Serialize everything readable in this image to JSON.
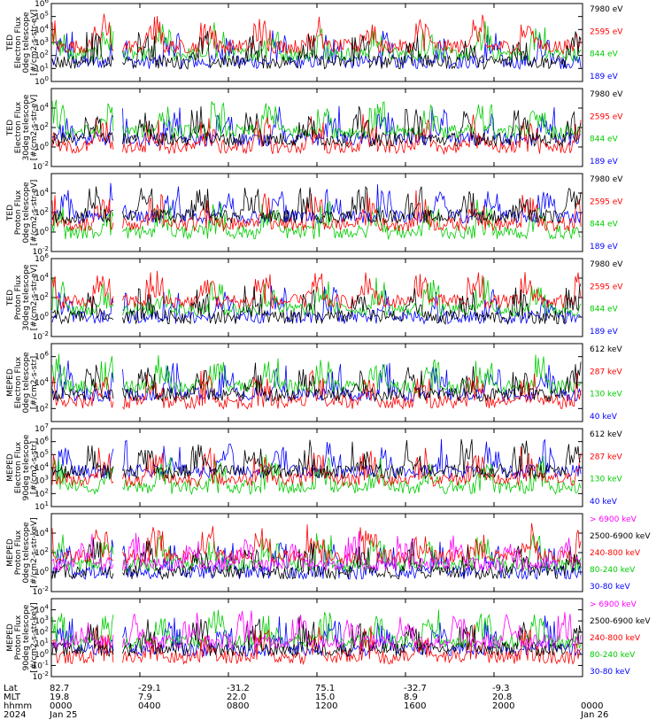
{
  "chart_data": [
    {
      "type": "line",
      "instrument": "TED",
      "ylabel": [
        "TED",
        "Electron Flux",
        "0deg telescope",
        "[#/cm2-s-str-eV]"
      ],
      "ylim_exp": [
        0,
        6
      ],
      "yticks": [
        "10^0",
        "10^1",
        "10^2",
        "10^3",
        "10^4",
        "10^5",
        "10^6"
      ],
      "series": [
        {
          "name": "7980 eV",
          "color": "#000000"
        },
        {
          "name": "2595 eV",
          "color": "#ff0000"
        },
        {
          "name": "844 eV",
          "color": "#00cc00"
        },
        {
          "name": "189 eV",
          "color": "#0000ff"
        }
      ]
    },
    {
      "type": "line",
      "instrument": "TED",
      "ylabel": [
        "TED",
        "Electron Flux",
        "30deg telescope",
        "[#/cm2-s-str-eV]"
      ],
      "ylim_exp": [
        -2,
        6
      ],
      "yticks": [
        "10^-2",
        "10^0",
        "10^2",
        "10^4"
      ],
      "series": [
        {
          "name": "7980 eV",
          "color": "#000000"
        },
        {
          "name": "2595 eV",
          "color": "#ff0000"
        },
        {
          "name": "844 eV",
          "color": "#00cc00"
        },
        {
          "name": "189 eV",
          "color": "#0000ff"
        }
      ]
    },
    {
      "type": "line",
      "instrument": "TED",
      "ylabel": [
        "TED",
        "Proton Flux",
        "0deg telescope",
        "[#/cm2-s-str-eV]"
      ],
      "ylim_exp": [
        -2,
        6
      ],
      "yticks": [
        "10^-2",
        "10^0",
        "10^2",
        "10^4"
      ],
      "series": [
        {
          "name": "7980 eV",
          "color": "#000000"
        },
        {
          "name": "2595 eV",
          "color": "#ff0000"
        },
        {
          "name": "844 eV",
          "color": "#00cc00"
        },
        {
          "name": "189 eV",
          "color": "#0000ff"
        }
      ]
    },
    {
      "type": "line",
      "instrument": "TED",
      "ylabel": [
        "TED",
        "Proton Flux",
        "30deg telescope",
        "[#/cm2-s-str-eV]"
      ],
      "ylim_exp": [
        -2,
        6
      ],
      "yticks": [
        "10^-2",
        "10^0",
        "10^2",
        "10^4",
        "10^6"
      ],
      "series": [
        {
          "name": "7980 eV",
          "color": "#000000"
        },
        {
          "name": "2595 eV",
          "color": "#ff0000"
        },
        {
          "name": "844 eV",
          "color": "#00cc00"
        },
        {
          "name": "189 eV",
          "color": "#0000ff"
        }
      ]
    },
    {
      "type": "line",
      "instrument": "MEPED",
      "ylabel": [
        "MEPED",
        "Electron Flux",
        "0deg telescope",
        "[#/cm2-s-str]"
      ],
      "ylim_exp": [
        1,
        7
      ],
      "yticks": [
        "10^2",
        "10^4",
        "10^6"
      ],
      "series": [
        {
          "name": "612 keV",
          "color": "#000000"
        },
        {
          "name": "287 keV",
          "color": "#ff0000"
        },
        {
          "name": "130 keV",
          "color": "#00cc00"
        },
        {
          "name": "40 keV",
          "color": "#0000ff"
        }
      ]
    },
    {
      "type": "line",
      "instrument": "MEPED",
      "ylabel": [
        "MEPED",
        "Electron Flux",
        "90deg telescope",
        "[#/cm2-s-str]"
      ],
      "ylim_exp": [
        1,
        7
      ],
      "yticks": [
        "10^1",
        "10^2",
        "10^3",
        "10^4",
        "10^5",
        "10^6",
        "10^7"
      ],
      "series": [
        {
          "name": "612 keV",
          "color": "#000000"
        },
        {
          "name": "287 keV",
          "color": "#ff0000"
        },
        {
          "name": "130 keV",
          "color": "#00cc00"
        },
        {
          "name": "40 keV",
          "color": "#0000ff"
        }
      ]
    },
    {
      "type": "line",
      "instrument": "MEPED",
      "ylabel": [
        "MEPED",
        "Proton Flux",
        "0deg telescope",
        "[#/cm2-s-str-keV]"
      ],
      "ylim_exp": [
        -2,
        6
      ],
      "yticks": [
        "10^-2",
        "10^0",
        "10^2",
        "10^4"
      ],
      "series": [
        {
          "name": "> 6900 keV",
          "color": "#ff00ff"
        },
        {
          "name": "2500-6900 keV",
          "color": "#000000"
        },
        {
          "name": "240-800 keV",
          "color": "#ff0000"
        },
        {
          "name": "80-240 keV",
          "color": "#00cc00"
        },
        {
          "name": "30-80 keV",
          "color": "#0000ff"
        }
      ]
    },
    {
      "type": "line",
      "instrument": "MEPED",
      "ylabel": [
        "MEPED",
        "Proton Flux",
        "90deg telescope",
        "[#/cm2-s-str-keV]"
      ],
      "ylim_exp": [
        -2,
        5
      ],
      "yticks": [
        "10^-2",
        "10^-1",
        "10^0",
        "10^1",
        "10^2",
        "10^3",
        "10^4"
      ],
      "series": [
        {
          "name": "> 6900 keV",
          "color": "#ff00ff"
        },
        {
          "name": "2500-6900 keV",
          "color": "#000000"
        },
        {
          "name": "240-800 keV",
          "color": "#ff0000"
        },
        {
          "name": "80-240 keV",
          "color": "#00cc00"
        },
        {
          "name": "30-80 keV",
          "color": "#0000ff"
        }
      ]
    }
  ],
  "x_axis": {
    "row_labels": [
      "Lat",
      "MLT",
      "hhmm",
      "2024"
    ],
    "hours": [
      0,
      4,
      8,
      12,
      16,
      20,
      24
    ],
    "columns": [
      [
        "82.7",
        "19.8",
        "0000",
        "Jan 25"
      ],
      [
        "-29.1",
        "7.9",
        "0400",
        ""
      ],
      [
        "-31.2",
        "22.0",
        "0800",
        ""
      ],
      [
        "75.1",
        "15.0",
        "1200",
        ""
      ],
      [
        "-32.7",
        "8.9",
        "1600",
        ""
      ],
      [
        "-9.3",
        "20.8",
        "2000",
        ""
      ],
      [
        "",
        "",
        "0000",
        "Jan 26"
      ]
    ]
  },
  "data_gap_hours": [
    2.8,
    3.2
  ]
}
